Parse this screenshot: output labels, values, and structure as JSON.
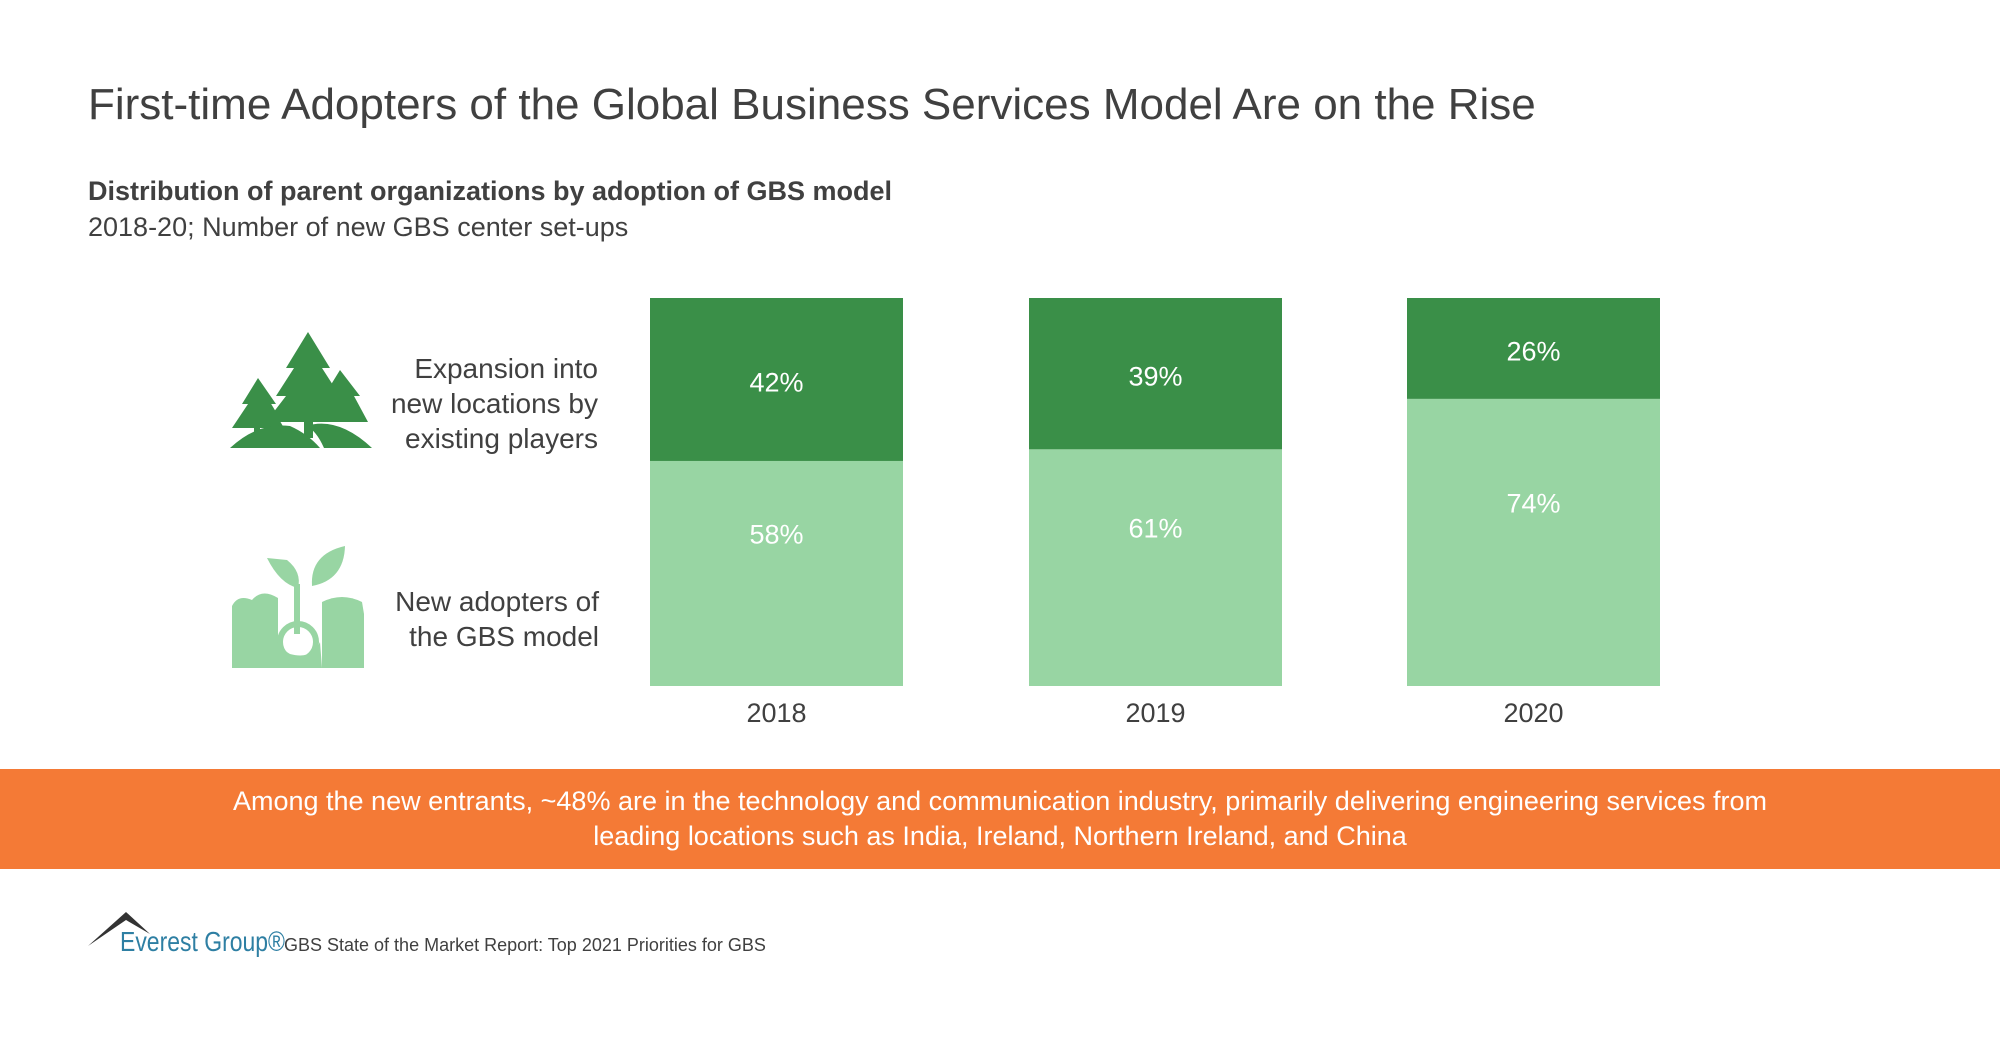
{
  "title": "First-time Adopters of the Global Business Services Model Are on the Rise",
  "colors": {
    "expansion": "#3A8F48",
    "new_adopters": "#98D5A3",
    "callout": "#F47A36",
    "logo": "#2E7FA3"
  },
  "chart_data": {
    "type": "bar",
    "stacked": true,
    "title": "Distribution of parent organizations by adoption of GBS model",
    "subtitle": "2018-20; Number of new GBS center set-ups",
    "categories": [
      "2018",
      "2019",
      "2020"
    ],
    "unit": "%",
    "ylim": [
      0,
      100
    ],
    "grid": false,
    "legend_placement": "left",
    "series": [
      {
        "name": "New adopters of the GBS model",
        "icon": "seedling-icon",
        "values": [
          58,
          61,
          74
        ],
        "labels": [
          "58%",
          "61%",
          "74%"
        ]
      },
      {
        "name": "Expansion into new locations by existing players",
        "icon": "trees-icon",
        "values": [
          42,
          39,
          26
        ],
        "labels": [
          "42%",
          "39%",
          "26%"
        ]
      }
    ]
  },
  "legend": {
    "expansion_lines": [
      "Expansion into",
      "new locations by",
      "existing players"
    ],
    "new_lines": [
      "New adopters of",
      "the GBS model"
    ]
  },
  "callout": {
    "lines": [
      "Among the new entrants, ~48% are in the technology and communication industry, primarily delivering engineering services from",
      "leading locations such as India, Ireland, Northern Ireland, and China"
    ]
  },
  "footer": {
    "logo": "Everest Group®",
    "source": "GBS State of the Market Report: Top 2021 Priorities for GBS"
  }
}
